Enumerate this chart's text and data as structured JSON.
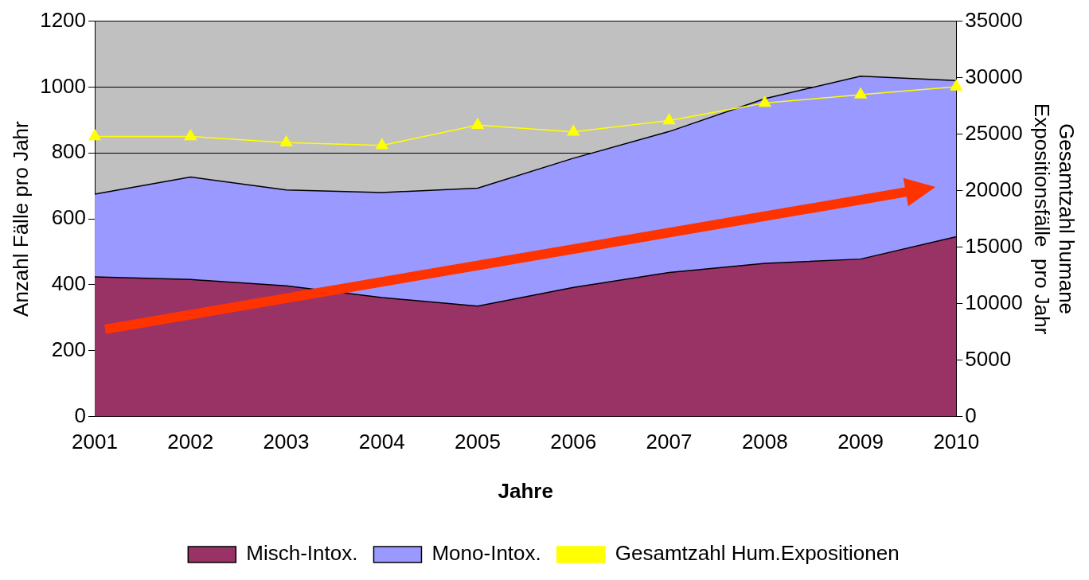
{
  "chart_data": {
    "type": "area",
    "xlabel": "Jahre",
    "ylabel": "Anzahl Fälle pro Jahr",
    "y2label": "Gesamtzahl humane\nExpositionsfälle  pro Jahr",
    "categories": [
      "2001",
      "2002",
      "2003",
      "2004",
      "2005",
      "2006",
      "2007",
      "2008",
      "2009",
      "2010"
    ],
    "stacked": true,
    "series": [
      {
        "name": "Misch-Intox.",
        "color": "#993366",
        "values": [
          424,
          416,
          397,
          361,
          335,
          392,
          437,
          465,
          478,
          546
        ]
      },
      {
        "name": "Mono-Intox.",
        "color": "#9999ff",
        "values": [
          251,
          311,
          291,
          319,
          358,
          392,
          428,
          500,
          555,
          474
        ]
      },
      {
        "name": "Gesamtzahl Hum.Expositionen",
        "type": "line",
        "axis": "y2",
        "color": "#ffff00",
        "marker": "triangle",
        "values": [
          24800,
          24800,
          24250,
          24000,
          25800,
          25200,
          26200,
          27750,
          28500,
          29200
        ]
      }
    ],
    "ylim": [
      0,
      1200
    ],
    "yticks": [
      0,
      200,
      400,
      600,
      800,
      1000,
      1200
    ],
    "y2lim": [
      0,
      35000
    ],
    "y2ticks": [
      0,
      5000,
      10000,
      15000,
      20000,
      25000,
      30000,
      35000
    ],
    "grid": "y",
    "legend": "bottom"
  }
}
